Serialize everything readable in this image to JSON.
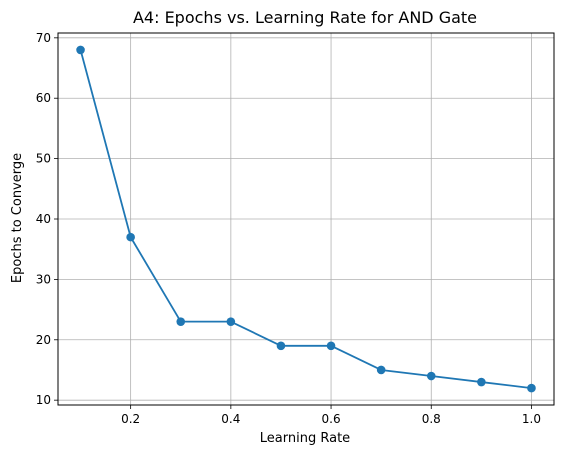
{
  "chart_data": {
    "type": "line",
    "title": "A4: Epochs vs. Learning Rate for AND Gate",
    "xlabel": "Learning Rate",
    "ylabel": "Epochs to Converge",
    "x": [
      0.1,
      0.2,
      0.3,
      0.4,
      0.5,
      0.6,
      0.7,
      0.8,
      0.9,
      1.0
    ],
    "series": [
      {
        "values": [
          68,
          37,
          23,
          23,
          19,
          19,
          15,
          14,
          13,
          12
        ],
        "color": "#1f77b4",
        "marker": "circle"
      }
    ],
    "xlim": [
      0.055,
      1.045
    ],
    "ylim": [
      9.2,
      70.8
    ],
    "xticks": [
      0.2,
      0.4,
      0.6,
      0.8,
      1.0
    ],
    "xtick_labels": [
      "0.2",
      "0.4",
      "0.6",
      "0.8",
      "1.0"
    ],
    "yticks": [
      10,
      20,
      30,
      40,
      50,
      60,
      70
    ],
    "ytick_labels": [
      "10",
      "20",
      "30",
      "40",
      "50",
      "60",
      "70"
    ],
    "grid": true
  }
}
